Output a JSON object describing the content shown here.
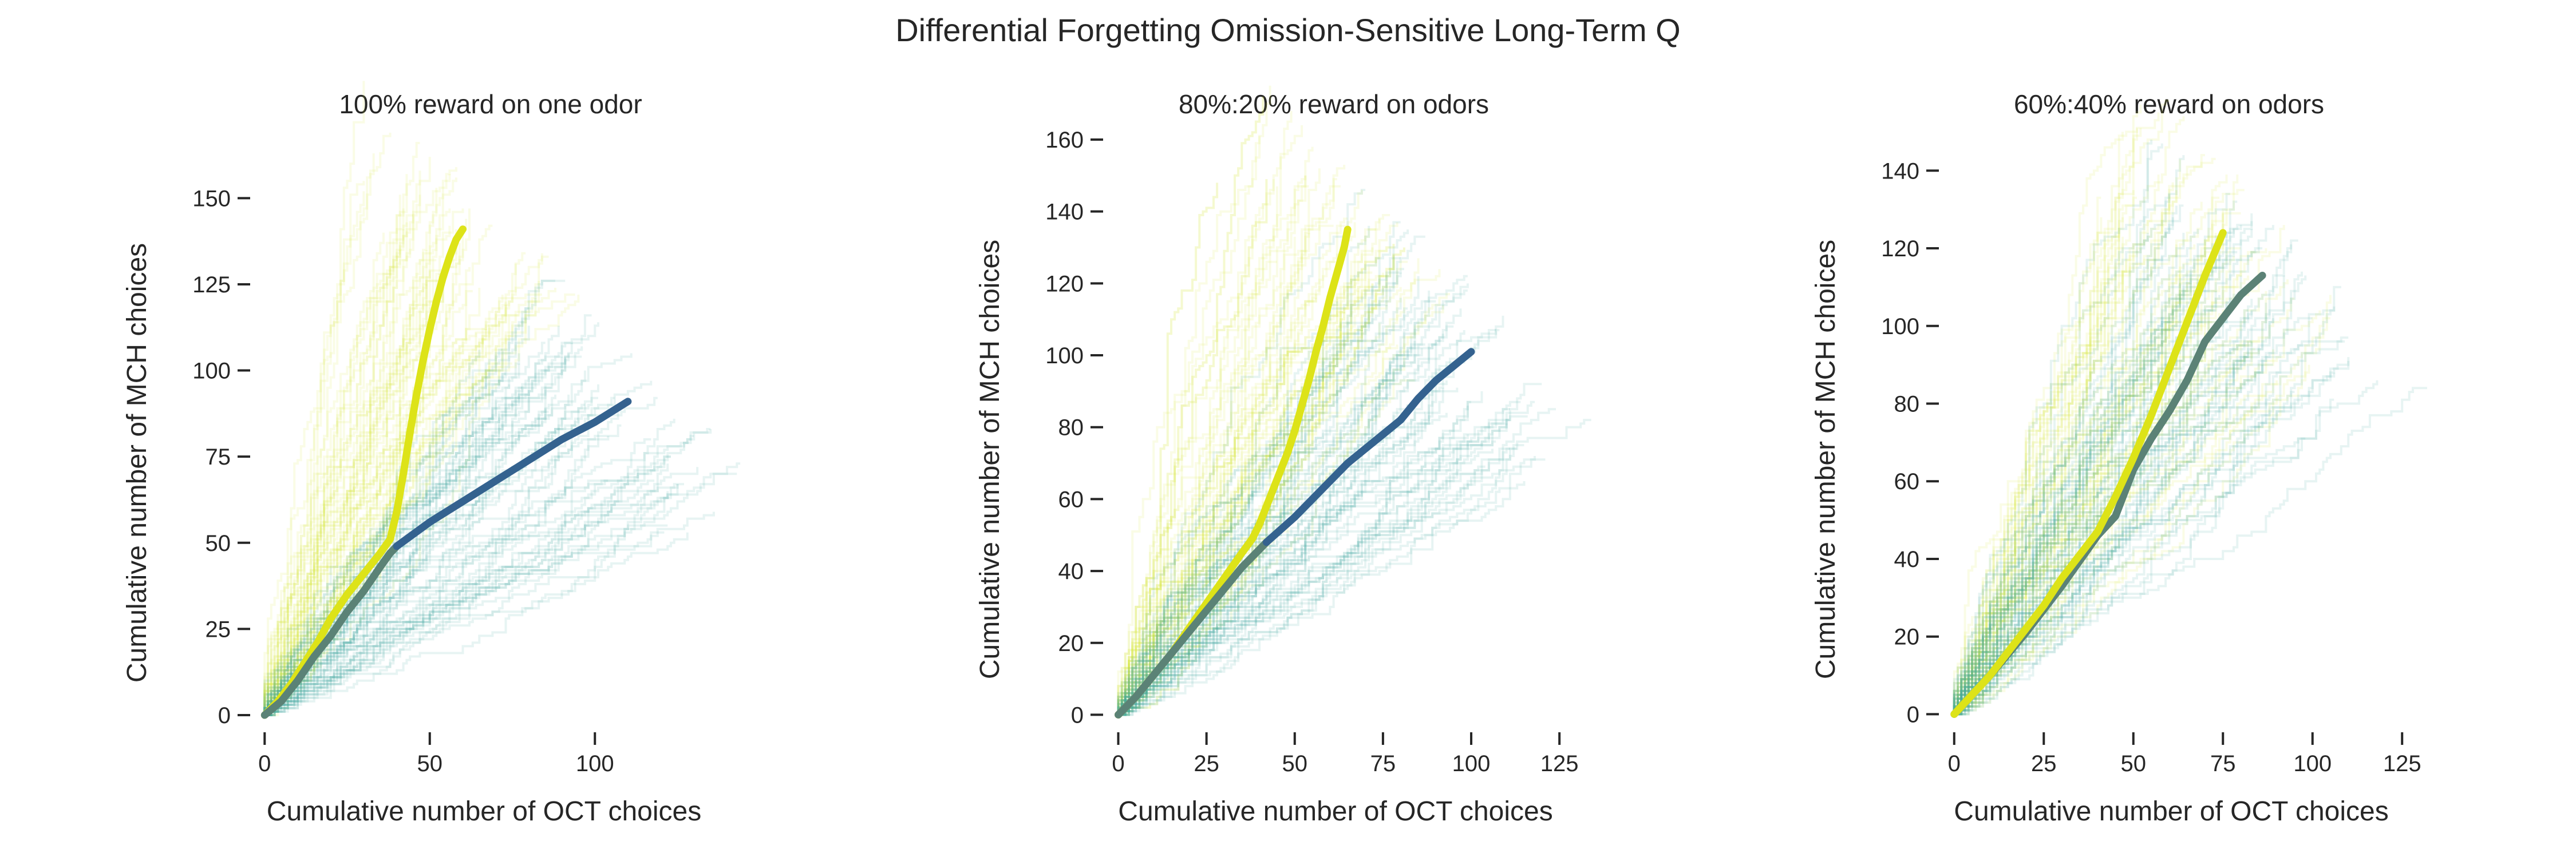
{
  "figure_title": "Differential Forgetting Omission-Sensitive Long-Term Q",
  "colors": {
    "yellow_mean": "#DDE318",
    "blue_mean": "#34628F",
    "mixed_mean": "#5B8276",
    "yellow_traces": "#D7E73A",
    "teal_traces": "#43A7A6"
  },
  "chart_data": [
    {
      "type": "line",
      "title": "100% reward on one odor",
      "xlabel": "Cumulative number of OCT choices",
      "ylabel": "Cumulative number of MCH choices",
      "xlim": [
        -3,
        140
      ],
      "ylim": [
        -2,
        165
      ],
      "xticks": [
        0,
        50,
        100
      ],
      "yticks": [
        0,
        25,
        50,
        75,
        100,
        125,
        150
      ],
      "grid": false,
      "background_traces": {
        "yellow_count": 60,
        "teal_count": 60
      },
      "series": [
        {
          "color": "#DDE318",
          "x": [
            0,
            4,
            8,
            12,
            16,
            20,
            25,
            30,
            35,
            38,
            40,
            42,
            44,
            46,
            48,
            50,
            52,
            54,
            56,
            58,
            60
          ],
          "y": [
            0,
            4,
            9,
            15,
            21,
            28,
            35,
            41,
            47,
            51,
            59,
            70,
            82,
            93,
            103,
            112,
            120,
            127,
            133,
            138,
            141
          ]
        },
        {
          "color": "#5B8276",
          "x": [
            0,
            5,
            10,
            15,
            20,
            25,
            30,
            35,
            38,
            40
          ],
          "y": [
            0,
            4,
            10,
            17,
            23,
            30,
            36,
            43,
            47,
            49
          ]
        },
        {
          "color": "#34628F",
          "x": [
            40,
            50,
            60,
            70,
            80,
            90,
            100,
            110
          ],
          "y": [
            49,
            56,
            62,
            68,
            74,
            80,
            85,
            91
          ]
        }
      ]
    },
    {
      "type": "line",
      "title": "80%:20% reward on odors",
      "xlabel": "Cumulative number of OCT choices",
      "ylabel": "Cumulative number of MCH choices",
      "xlim": [
        -3,
        130
      ],
      "ylim": [
        -2,
        160
      ],
      "xticks": [
        0,
        25,
        50,
        75,
        100,
        125
      ],
      "yticks": [
        0,
        20,
        40,
        60,
        80,
        100,
        120,
        140,
        160
      ],
      "grid": false,
      "background_traces": {
        "yellow_count": 60,
        "teal_count": 60
      },
      "series": [
        {
          "color": "#DDE318",
          "x": [
            0,
            5,
            10,
            15,
            20,
            25,
            30,
            35,
            38,
            40,
            42,
            44,
            46,
            48,
            50,
            52,
            54,
            56,
            58,
            60,
            62,
            64,
            65
          ],
          "y": [
            0,
            5,
            11,
            17,
            24,
            31,
            38,
            45,
            49,
            53,
            58,
            63,
            68,
            73,
            79,
            86,
            93,
            101,
            108,
            116,
            123,
            130,
            135
          ]
        },
        {
          "color": "#5B8276",
          "x": [
            0,
            5,
            10,
            15,
            20,
            25,
            30,
            35,
            40,
            42
          ],
          "y": [
            0,
            5,
            11,
            17,
            23,
            29,
            35,
            41,
            46,
            48
          ]
        },
        {
          "color": "#34628F",
          "x": [
            42,
            50,
            55,
            60,
            65,
            70,
            75,
            80,
            85,
            90,
            95,
            100
          ],
          "y": [
            48,
            55,
            60,
            65,
            70,
            74,
            78,
            82,
            88,
            93,
            97,
            101
          ]
        }
      ]
    },
    {
      "type": "line",
      "title": "60%:40% reward on odors",
      "xlabel": "Cumulative number of OCT choices",
      "ylabel": "Cumulative number of MCH choices",
      "xlim": [
        -3,
        128
      ],
      "ylim": [
        -2,
        148
      ],
      "xticks": [
        0,
        25,
        50,
        75,
        100,
        125
      ],
      "yticks": [
        0,
        20,
        40,
        60,
        80,
        100,
        120,
        140
      ],
      "grid": false,
      "background_traces": {
        "yellow_count": 60,
        "teal_count": 60
      },
      "series": [
        {
          "color": "#5B8276",
          "x": [
            0,
            10,
            20,
            30,
            40,
            45,
            50,
            55,
            60,
            65,
            70,
            75,
            80,
            86
          ],
          "y": [
            0,
            10,
            21,
            33,
            46,
            51,
            63,
            71,
            78,
            86,
            96,
            102,
            108,
            113
          ]
        },
        {
          "color": "#DDE318",
          "x": [
            0,
            5,
            10,
            15,
            20,
            25,
            30,
            35,
            40,
            45,
            50,
            55,
            60,
            65,
            70,
            75
          ],
          "y": [
            0,
            5,
            10,
            16,
            22,
            28,
            35,
            41,
            47,
            56,
            66,
            77,
            89,
            101,
            113,
            124
          ]
        }
      ]
    }
  ]
}
